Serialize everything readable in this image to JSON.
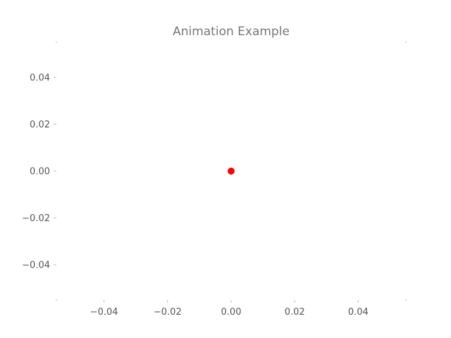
{
  "chart_data": {
    "type": "scatter",
    "title": "Animation Example",
    "xlabel": "",
    "ylabel": "",
    "xlim": [
      -0.055,
      0.055
    ],
    "ylim": [
      -0.055,
      0.055
    ],
    "x_ticks": [
      -0.04,
      -0.02,
      0.0,
      0.02,
      0.04
    ],
    "x_tick_labels": [
      "−0.04",
      "−0.02",
      "0.00",
      "0.02",
      "0.04"
    ],
    "y_ticks": [
      0.04,
      0.02,
      0.0,
      -0.02,
      -0.04
    ],
    "y_tick_labels": [
      "0.04",
      "0.02",
      "0.00",
      "−0.02",
      "−0.04"
    ],
    "grid": false,
    "series": [
      {
        "points": [
          {
            "x": 0.0,
            "y": 0.0
          }
        ],
        "color": "#ff0000"
      }
    ]
  }
}
